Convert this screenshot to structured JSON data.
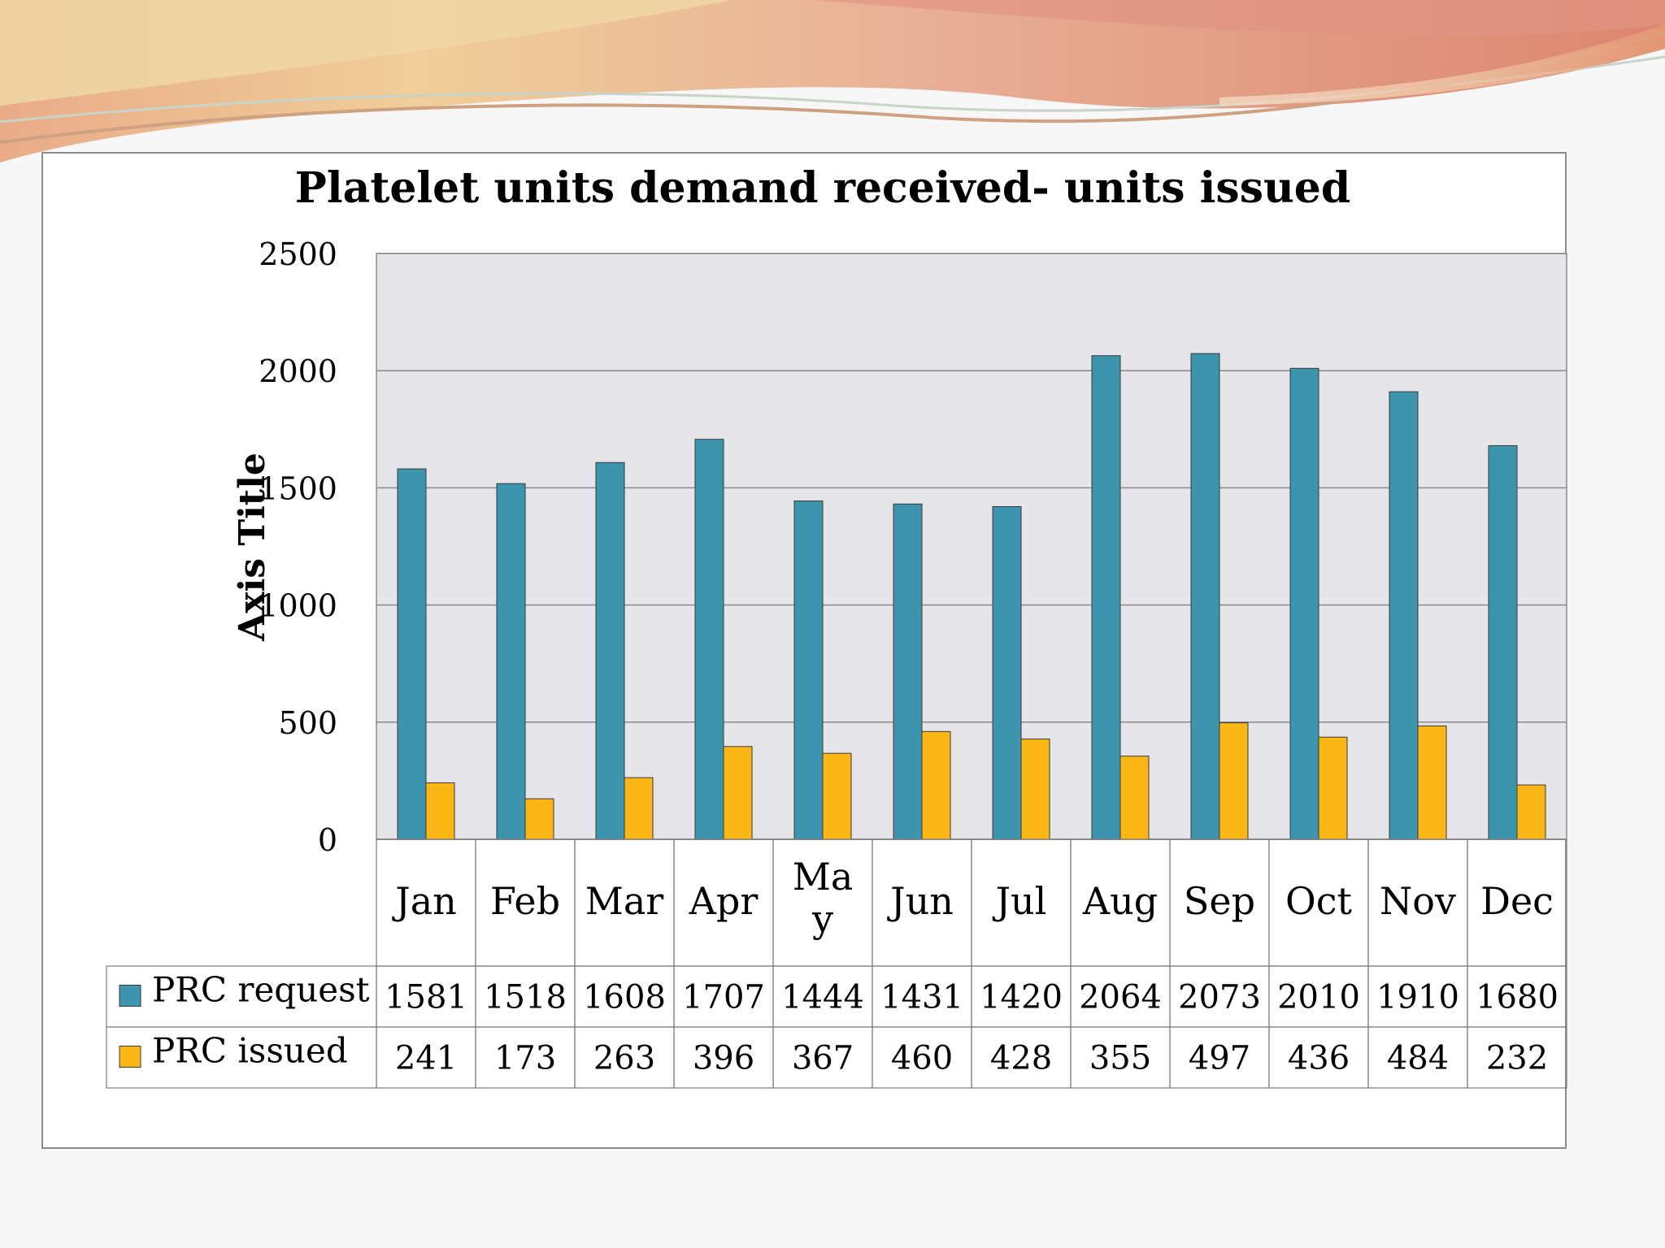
{
  "chart_data": {
    "type": "bar",
    "title": "Platelet units demand received- units issued",
    "ylabel": "Axis Title",
    "xlabel": "",
    "ylim": [
      0,
      2500
    ],
    "yticks": [
      0,
      500,
      1000,
      1500,
      2000,
      2500
    ],
    "grid": true,
    "legend": "data-table",
    "categories": [
      "Jan",
      "Feb",
      "Mar",
      "Apr",
      "May",
      "Jun",
      "Jul",
      "Aug",
      "Sep",
      "Oct",
      "Nov",
      "Dec"
    ],
    "series": [
      {
        "name": "PRC request",
        "color": "#3c94ad",
        "values": [
          1581,
          1518,
          1608,
          1707,
          1444,
          1431,
          1420,
          2064,
          2073,
          2010,
          1910,
          1680
        ]
      },
      {
        "name": "PRC issued",
        "color": "#fbb715",
        "values": [
          241,
          173,
          263,
          396,
          367,
          460,
          428,
          355,
          497,
          436,
          484,
          232
        ]
      }
    ]
  }
}
